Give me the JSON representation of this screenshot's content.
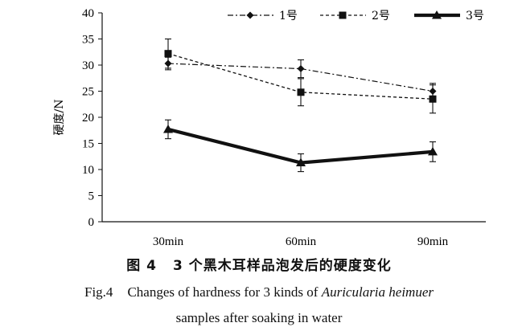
{
  "chart_data": {
    "type": "line",
    "categories": [
      "30min",
      "60min",
      "90min"
    ],
    "ylabel": "硬度/N",
    "xlabel": "",
    "ylim": [
      0,
      40
    ],
    "yticks": [
      0,
      5,
      10,
      15,
      20,
      25,
      30,
      35,
      40
    ],
    "grid": false,
    "legend_position": "top",
    "series": [
      {
        "name": "1号",
        "values": [
          30.3,
          29.3,
          25.0
        ],
        "errors": [
          1.2,
          1.7,
          1.5
        ],
        "marker": "diamond",
        "line_style": "dash-dot",
        "color": "#111111"
      },
      {
        "name": "2号",
        "values": [
          32.2,
          24.8,
          23.5
        ],
        "errors": [
          2.8,
          2.6,
          2.7
        ],
        "marker": "square",
        "line_style": "dashed",
        "color": "#111111"
      },
      {
        "name": "3号",
        "values": [
          17.7,
          11.3,
          13.4
        ],
        "errors": [
          1.8,
          1.7,
          1.9
        ],
        "marker": "triangle",
        "line_style": "solid-bold",
        "color": "#111111"
      }
    ]
  },
  "caption": {
    "cn_fig": "图 4",
    "cn_title": "3 个黑木耳样品泡发后的硬度变化",
    "en_fig": "Fig.4",
    "en_title_a": "Changes of hardness for 3 kinds of ",
    "en_title_italic": "Auricularia heimuer",
    "en_title_line2": "samples after soaking in water"
  }
}
